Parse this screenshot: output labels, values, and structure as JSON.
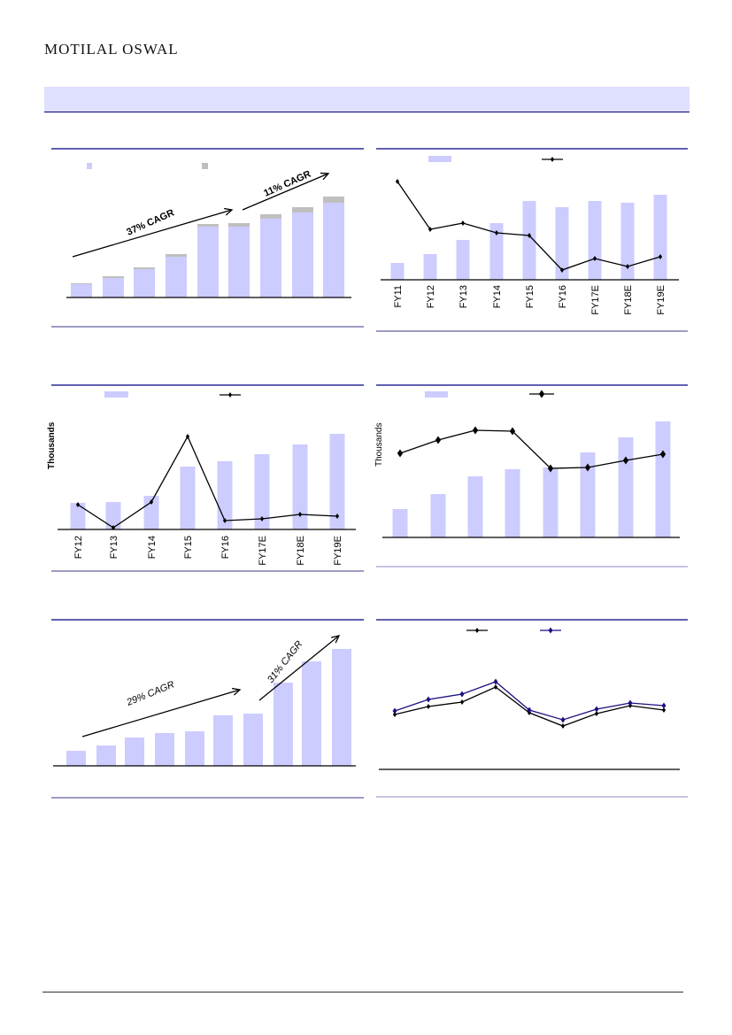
{
  "header": {
    "logo": "MOTILAL OSWAL"
  },
  "colors": {
    "bar": "#ccccff",
    "bar_secondary": "#bfbfbf",
    "line": "#000000",
    "line_secondary": "#1a0f80",
    "rule": "#000080"
  },
  "chart_data": [
    {
      "type": "bar",
      "stacked": true,
      "title": "",
      "series": [
        {
          "name": "",
          "values": [
            15,
            22,
            32,
            46,
            80,
            80,
            89,
            96,
            107
          ]
        },
        {
          "name": "",
          "values": [
            1,
            2,
            2,
            3,
            3,
            4,
            5,
            6,
            7
          ]
        }
      ],
      "annotations": [
        "37% CAGR",
        "11% CAGR"
      ]
    },
    {
      "type": "bar+line",
      "categories": [
        "FY11",
        "FY12",
        "FY13",
        "FY14",
        "FY15",
        "FY16",
        "FY17E",
        "FY18E",
        "FY19E"
      ],
      "series": [
        {
          "name": "",
          "type": "bar",
          "values": [
            19,
            29,
            45,
            64,
            89,
            82,
            89,
            87,
            96
          ]
        },
        {
          "name": "",
          "type": "line",
          "values": [
            111,
            57,
            64,
            53,
            50,
            11,
            24,
            15,
            26
          ]
        }
      ]
    },
    {
      "type": "bar+line",
      "categories": [
        "FY12",
        "FY13",
        "FY14",
        "FY15",
        "FY16",
        "FY17E",
        "FY18E",
        "FY19E"
      ],
      "ylabel": "Thousands",
      "series": [
        {
          "name": "",
          "type": "bar",
          "values": [
            30,
            31,
            38,
            71,
            77,
            85,
            96,
            108
          ]
        },
        {
          "name": "",
          "type": "line",
          "values": [
            28,
            2,
            31,
            105,
            10,
            12,
            17,
            15
          ]
        }
      ]
    },
    {
      "type": "bar+line",
      "ylabel": "Thousands",
      "series": [
        {
          "name": "",
          "type": "bar",
          "values": [
            32,
            49,
            69,
            77,
            79,
            96,
            113,
            131
          ]
        },
        {
          "name": "",
          "type": "line",
          "values": [
            95,
            110,
            121,
            120,
            78,
            79,
            87,
            94
          ]
        }
      ]
    },
    {
      "type": "bar",
      "series": [
        {
          "name": "",
          "values": [
            17,
            23,
            32,
            37,
            39,
            57,
            59,
            94,
            118,
            132
          ]
        }
      ],
      "annotations": [
        "29% CAGR",
        "31% CAGR"
      ]
    },
    {
      "type": "line",
      "series": [
        {
          "name": "",
          "values": [
            62,
            71,
            76,
            93,
            64,
            49,
            63,
            72,
            67
          ]
        },
        {
          "name": "",
          "values": [
            66,
            79,
            85,
            99,
            67,
            56,
            68,
            75,
            72
          ]
        }
      ]
    }
  ]
}
